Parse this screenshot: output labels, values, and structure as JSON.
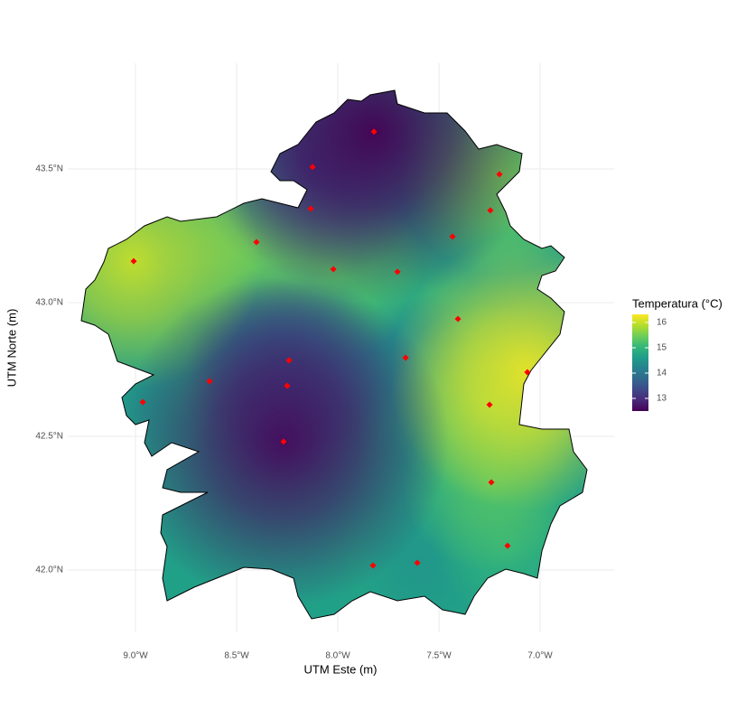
{
  "chart_data": {
    "type": "map",
    "x_label": "UTM Este (m)",
    "y_label": "UTM Norte (m)",
    "xlim": [
      -9.335,
      -6.634
    ],
    "ylim": [
      41.767,
      43.895
    ],
    "xticks": [
      {
        "value": -9.0,
        "label": "9.0°W"
      },
      {
        "value": -8.5,
        "label": "8.5°W"
      },
      {
        "value": -8.0,
        "label": "8.0°W"
      },
      {
        "value": -7.5,
        "label": "7.5°W"
      },
      {
        "value": -7.0,
        "label": "7.0°W"
      }
    ],
    "yticks": [
      {
        "value": 42.0,
        "label": "42.0°N"
      },
      {
        "value": 42.5,
        "label": "42.5°N"
      },
      {
        "value": 43.0,
        "label": "43.0°N"
      },
      {
        "value": 43.5,
        "label": "43.5°N"
      }
    ],
    "grid": true,
    "legend": {
      "title": "Temperatura (°C)",
      "position": "right",
      "colormap": "viridis",
      "clim": [
        12.5,
        16.32
      ],
      "ticks": [
        13,
        14,
        15,
        16
      ]
    },
    "stations": {
      "color": "#ff0000",
      "x": [
        -7.821,
        -8.125,
        -7.201,
        -8.134,
        -7.246,
        -7.433,
        -8.402,
        -9.009,
        -8.022,
        -7.705,
        -7.406,
        -7.665,
        -8.241,
        -7.063,
        -8.634,
        -8.25,
        -8.964,
        -7.25,
        -8.268,
        -7.241,
        -7.161,
        -7.607,
        -7.826
      ],
      "y": [
        43.639,
        43.507,
        43.48,
        43.351,
        43.345,
        43.247,
        43.226,
        43.155,
        43.125,
        43.115,
        42.939,
        42.794,
        42.784,
        42.74,
        42.706,
        42.689,
        42.628,
        42.618,
        42.48,
        42.328,
        42.091,
        42.027,
        42.017
      ],
      "values": [
        12.5,
        13.5,
        15.5,
        14.5,
        15.0,
        14.5,
        15.5,
        16.0,
        15.3,
        15.0,
        14.8,
        14.3,
        13.8,
        16.2,
        14.8,
        13.7,
        14.5,
        15.5,
        12.6,
        15.3,
        15.0,
        14.5,
        14.7
      ]
    }
  }
}
